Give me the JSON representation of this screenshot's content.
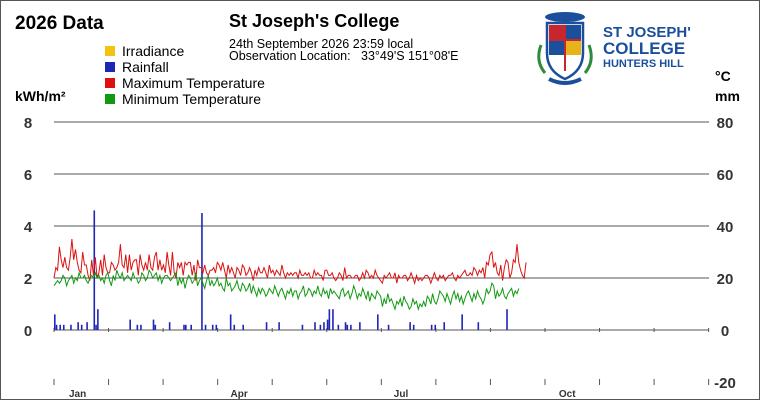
{
  "header": {
    "title": "2026 Data",
    "station": "St Joseph's College",
    "observation_time": "24th September 2026  23:59 local",
    "observation_location": "Observation Location:   33°49'S 151°08'E"
  },
  "logo": {
    "line1": "ST JOSEPH'S",
    "line2": "COLLEGE",
    "line3": "HUNTERS HILL",
    "color": "#1b4f9c"
  },
  "colors": {
    "irradiance": "#f2c40f",
    "rainfall": "#1f26b5",
    "max_temp": "#dd1111",
    "min_temp": "#119911",
    "grid": "#555555",
    "axis_text": "#333333"
  },
  "chart_data": {
    "type": "line",
    "left_axis": {
      "label": "kWh/m²",
      "ticks": [
        "8",
        "6",
        "4",
        "2",
        "0"
      ],
      "range": [
        0,
        8
      ]
    },
    "right_axis": {
      "labels": [
        "°C",
        "mm"
      ],
      "ticks": [
        "80",
        "60",
        "40",
        "20",
        "0",
        "-20"
      ],
      "range": [
        -20,
        80
      ]
    },
    "x_axis": {
      "ticks": [
        "Jan",
        "Apr",
        "Jul",
        "Oct"
      ],
      "tick_days": [
        0,
        90,
        181,
        273
      ],
      "domain_days": 365
    },
    "legend": [
      "Irradiance",
      "Rainfall",
      "Maximum Temperature",
      "Minimum Temperature"
    ],
    "grid": true,
    "series": [
      {
        "name": "Irradiance",
        "color": "#f2c40f",
        "axis": "left",
        "values": []
      },
      {
        "name": "Maximum Temperature",
        "color": "#dd1111",
        "axis": "right",
        "values": [
          20,
          24,
          23,
          32,
          27,
          24,
          28,
          24,
          23,
          28,
          35,
          27,
          31,
          26,
          23,
          22,
          30,
          25,
          25,
          21,
          19,
          27,
          21,
          28,
          20,
          22,
          27,
          21,
          29,
          24,
          22,
          22,
          26,
          25,
          23,
          24,
          26,
          33,
          25,
          24,
          29,
          22,
          29,
          23,
          26,
          27,
          27,
          21,
          29,
          25,
          23,
          26,
          23,
          29,
          24,
          23,
          28,
          30,
          23,
          27,
          23,
          25,
          22,
          30,
          25,
          21,
          30,
          22,
          20,
          26,
          24,
          26,
          21,
          26,
          25,
          26,
          26,
          21,
          25,
          19,
          27,
          24,
          24,
          22,
          25,
          22,
          21,
          23,
          23,
          24,
          22,
          26,
          25,
          23,
          26,
          23,
          20,
          25,
          22,
          24,
          22,
          20,
          24,
          23,
          21,
          25,
          24,
          21,
          22,
          24,
          22,
          19,
          23,
          21,
          24,
          22,
          22,
          24,
          22,
          20,
          25,
          22,
          23,
          21,
          23,
          22,
          21,
          25,
          22,
          20,
          22,
          21,
          22,
          21,
          22,
          22,
          20,
          23,
          21,
          21,
          22,
          21,
          22,
          20,
          20,
          23,
          21,
          22,
          21,
          21,
          19,
          23,
          23,
          21,
          21,
          22,
          20,
          19,
          20,
          22,
          21,
          19,
          24,
          20,
          21,
          21,
          20,
          20,
          21,
          21,
          19,
          20,
          22,
          20,
          23,
          22,
          20,
          21,
          20,
          23,
          21,
          20,
          19,
          18,
          21,
          20,
          21,
          22,
          20,
          20,
          22,
          18,
          21,
          20,
          20,
          21,
          21,
          19,
          20,
          22,
          20,
          18,
          21,
          19,
          20,
          19,
          20,
          21,
          21,
          20,
          18,
          20,
          22,
          20,
          19,
          21,
          20,
          21,
          19,
          20,
          21,
          21,
          22,
          20,
          19,
          21,
          20,
          21,
          22,
          23,
          21,
          21,
          22,
          21,
          24,
          23,
          21,
          23,
          22,
          24,
          20,
          26,
          25,
          29,
          30,
          24,
          26,
          22,
          21,
          25,
          19,
          24,
          27,
          26,
          20,
          22,
          27,
          26,
          33,
          26,
          23,
          21,
          20,
          26
        ]
      },
      {
        "name": "Minimum Temperature",
        "color": "#119911",
        "axis": "right",
        "values": [
          17,
          18,
          19,
          18,
          19,
          21,
          20,
          17,
          19,
          20,
          21,
          18,
          20,
          19,
          22,
          20,
          20,
          21,
          19,
          18,
          20,
          21,
          20,
          22,
          20,
          21,
          19,
          20,
          18,
          21,
          22,
          19,
          17,
          21,
          19,
          23,
          21,
          20,
          22,
          19,
          20,
          21,
          20,
          19,
          22,
          20,
          20,
          18,
          19,
          22,
          21,
          19,
          20,
          23,
          22,
          20,
          21,
          22,
          19,
          21,
          18,
          20,
          21,
          21,
          20,
          19,
          20,
          21,
          22,
          17,
          20,
          18,
          20,
          16,
          19,
          21,
          20,
          18,
          19,
          22,
          17,
          19,
          20,
          18,
          16,
          19,
          21,
          17,
          19,
          17,
          18,
          20,
          17,
          18,
          16,
          15,
          20,
          17,
          18,
          15,
          16,
          17,
          19,
          16,
          15,
          18,
          17,
          15,
          16,
          18,
          14,
          17,
          15,
          13,
          16,
          14,
          16,
          15,
          13,
          14,
          16,
          15,
          14,
          17,
          15,
          13,
          15,
          16,
          14,
          12,
          15,
          14,
          16,
          13,
          15,
          15,
          12,
          14,
          15,
          17,
          13,
          14,
          16,
          15,
          13,
          15,
          14,
          17,
          14,
          13,
          16,
          14,
          15,
          12,
          16,
          14,
          15,
          14,
          13,
          12,
          15,
          16,
          13,
          14,
          15,
          12,
          14,
          17,
          15,
          12,
          14,
          13,
          16,
          14,
          12,
          15,
          11,
          14,
          13,
          12,
          15,
          14,
          13,
          9,
          12,
          10,
          14,
          11,
          12,
          10,
          8,
          11,
          10,
          12,
          9,
          13,
          11,
          10,
          8,
          9,
          12,
          10,
          11,
          8,
          10,
          9,
          11,
          9,
          13,
          12,
          10,
          14,
          11,
          10,
          12,
          15,
          14,
          13,
          11,
          14,
          12,
          10,
          13,
          15,
          12,
          14,
          11,
          13,
          10,
          12,
          14,
          15,
          13,
          11,
          14,
          12,
          15,
          13,
          12,
          10,
          12,
          16,
          14,
          15,
          18,
          17,
          12,
          15,
          13,
          14,
          16,
          13,
          12,
          14,
          15,
          16,
          13,
          15,
          14,
          16
        ]
      },
      {
        "name": "Rainfall",
        "color": "#1f26b5",
        "axis": "right",
        "type": "bar",
        "days": [
          0,
          1,
          3,
          5,
          9,
          13,
          15,
          18,
          22,
          23,
          24,
          42,
          46,
          48,
          55,
          56,
          64,
          72,
          73,
          76,
          82,
          84,
          88,
          90,
          98,
          100,
          105,
          118,
          125,
          138,
          145,
          148,
          150,
          152,
          153,
          155,
          158,
          162,
          163,
          165,
          170,
          180,
          186,
          198,
          200,
          210,
          212,
          217,
          227,
          236,
          252
        ],
        "values": [
          6,
          2,
          2,
          2,
          2,
          3,
          2,
          3,
          46,
          2,
          8,
          4,
          2,
          2,
          4,
          2,
          3,
          2,
          2,
          2,
          45,
          2,
          2,
          2,
          6,
          2,
          2,
          3,
          3,
          2,
          3,
          2,
          3,
          4,
          8,
          8,
          2,
          3,
          2,
          2,
          3,
          6,
          2,
          3,
          2,
          2,
          2,
          3,
          6,
          3,
          8
        ]
      }
    ]
  }
}
